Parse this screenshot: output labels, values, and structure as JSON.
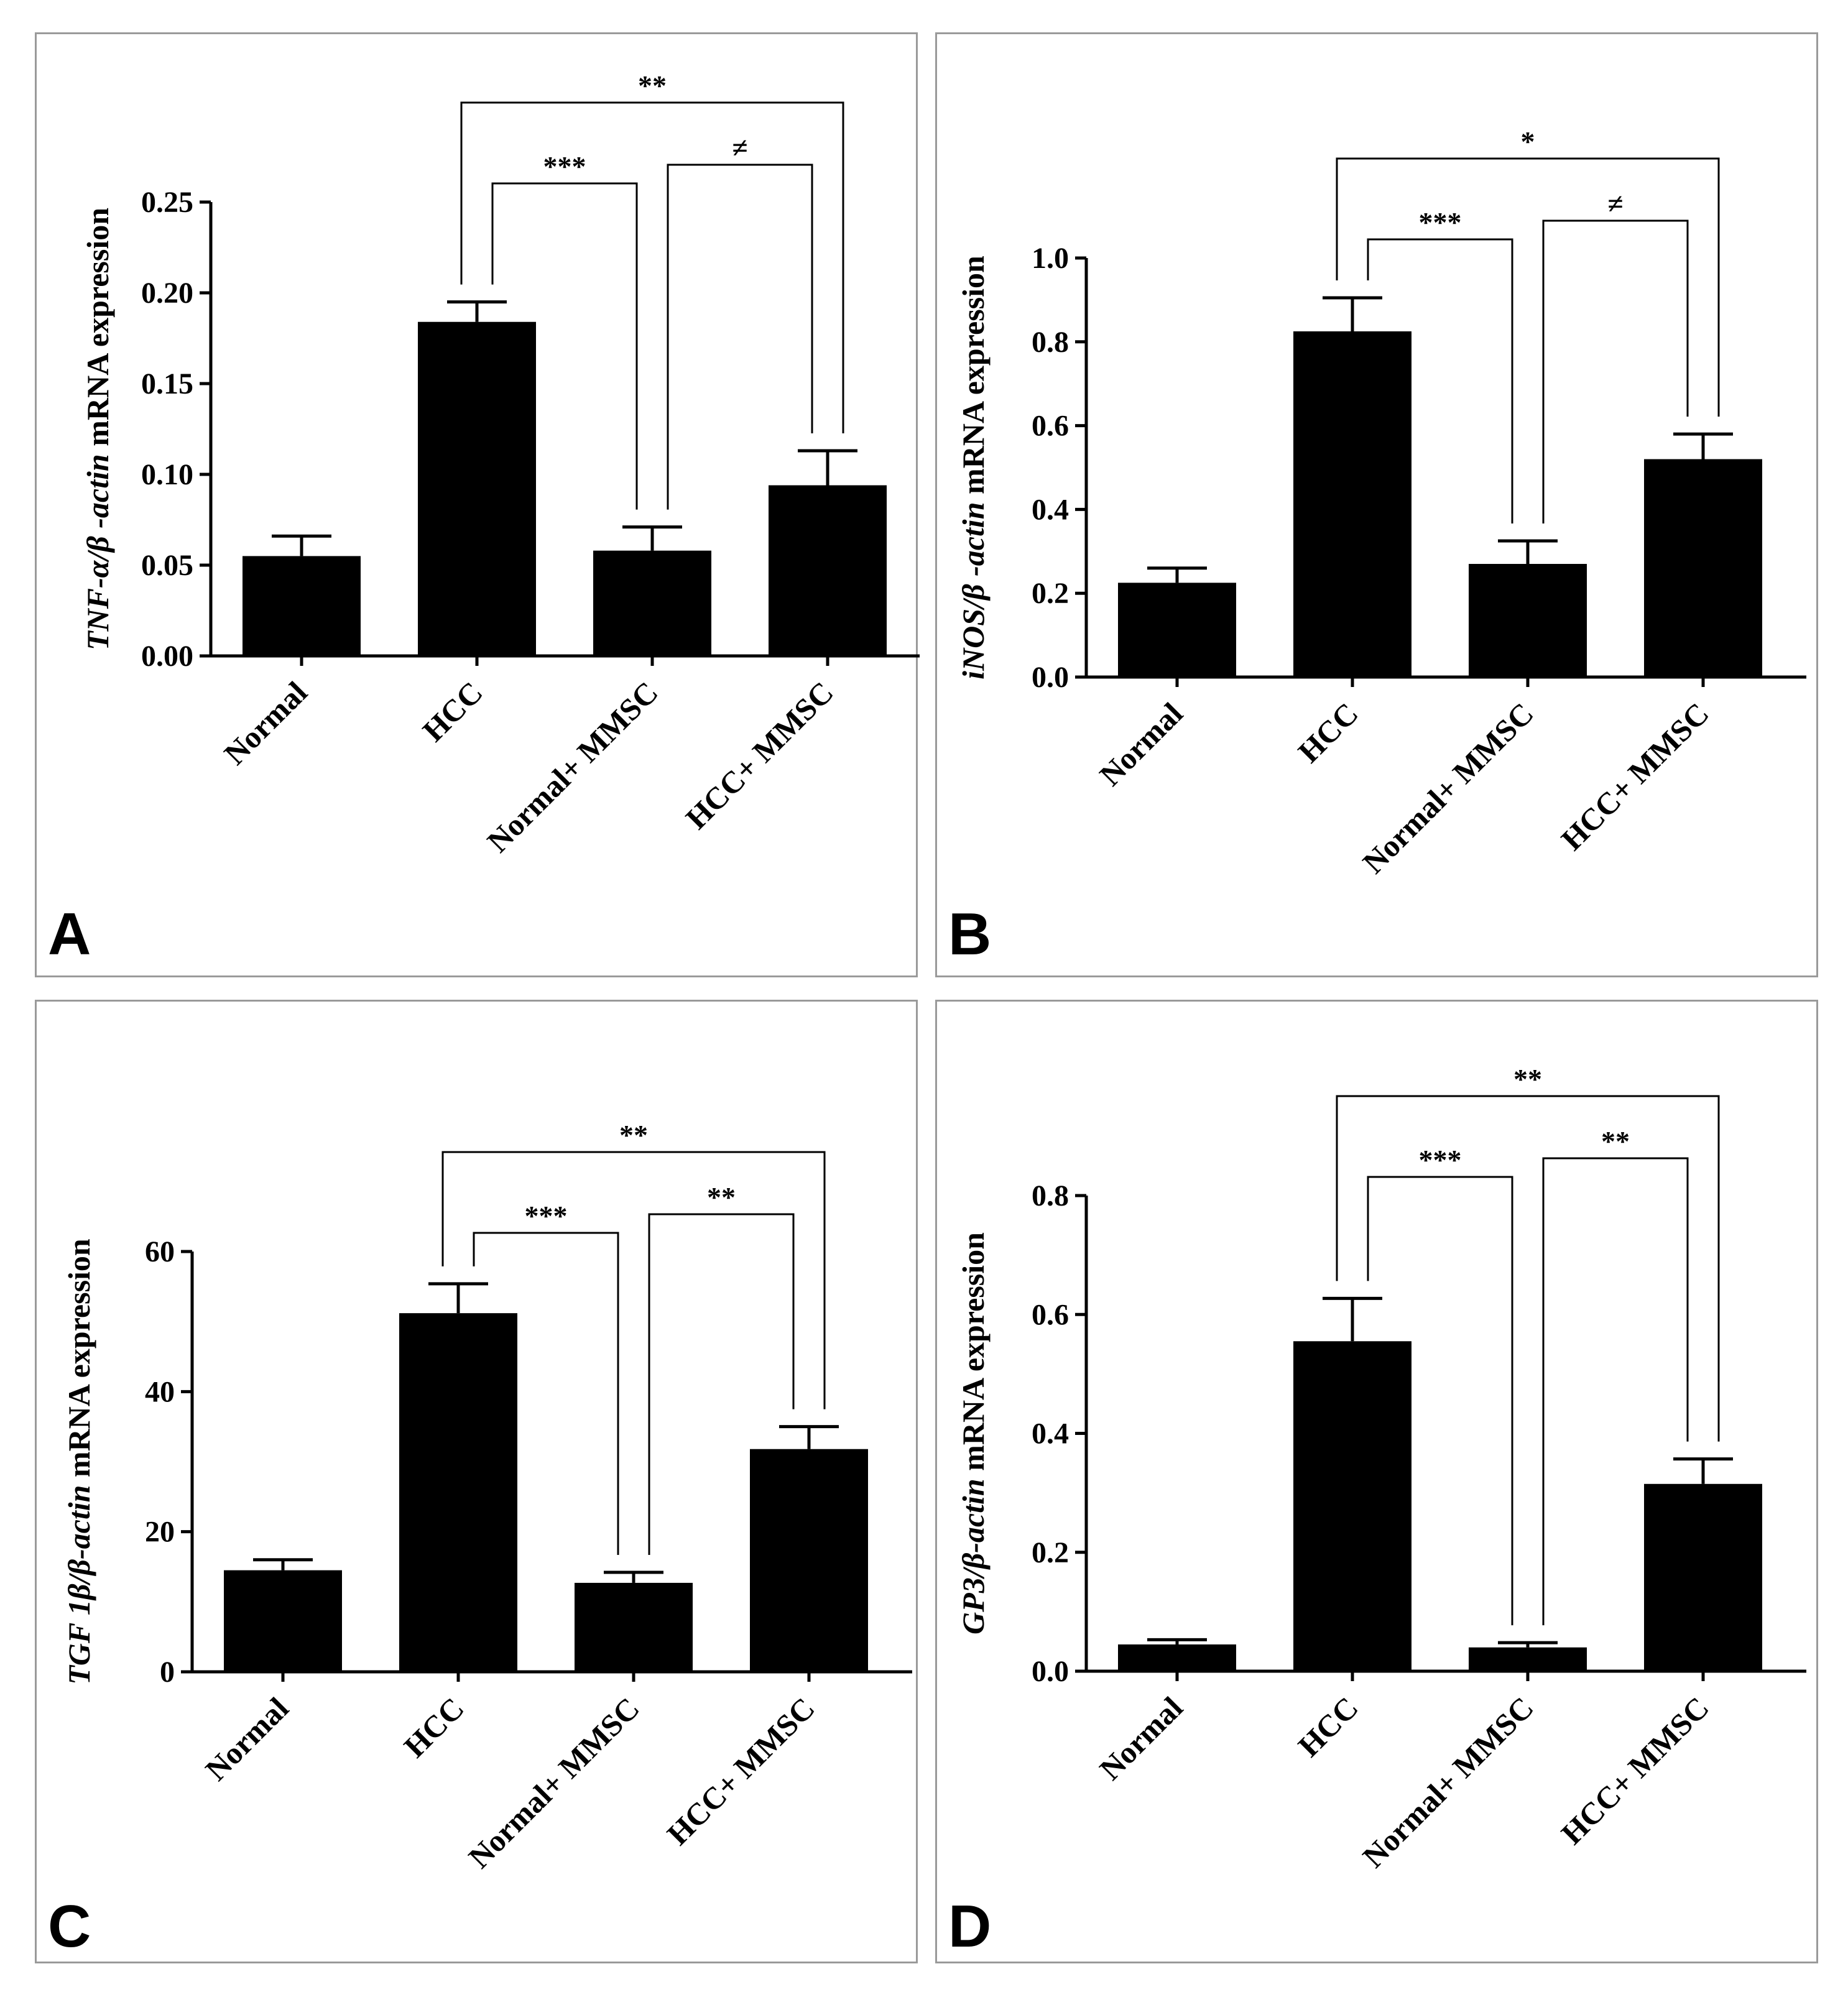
{
  "colors": {
    "bar": "#000000",
    "axis": "#000000",
    "border": "#9a9a9a"
  },
  "chart_data": [
    {
      "id": "A",
      "panel_label": "A",
      "type": "bar",
      "categories": [
        "Normal",
        "HCC",
        "Normal+ MMSC",
        "HCC+ MMSC"
      ],
      "values": [
        0.055,
        0.184,
        0.058,
        0.094
      ],
      "errors": [
        0.011,
        0.011,
        0.013,
        0.019
      ],
      "ylabel_italic": "TNF-α/β -actin",
      "ylabel_rest": " mRNA expression",
      "ylim": [
        0,
        0.25
      ],
      "yticks": [
        0,
        0.05,
        0.1,
        0.15,
        0.2,
        0.25
      ],
      "ytick_labels": [
        "0.00",
        "0.05",
        "0.10",
        "0.15",
        "0.20",
        "0.25"
      ],
      "brackets": [
        {
          "from": 1,
          "to": 3,
          "label": "**"
        },
        {
          "from": 2,
          "to": 3,
          "label": "≠"
        },
        {
          "from": 1,
          "to": 2,
          "label": "***"
        }
      ]
    },
    {
      "id": "B",
      "panel_label": "B",
      "type": "bar",
      "categories": [
        "Normal",
        "HCC",
        "Normal+ MMSC",
        "HCC+ MMSC"
      ],
      "values": [
        0.225,
        0.825,
        0.27,
        0.52
      ],
      "errors": [
        0.035,
        0.08,
        0.055,
        0.06
      ],
      "ylabel_italic": "iNOS/β -actin",
      "ylabel_rest": " mRNA expression",
      "ylim": [
        0,
        1.0
      ],
      "yticks": [
        0,
        0.2,
        0.4,
        0.6,
        0.8,
        1.0
      ],
      "ytick_labels": [
        "0.0",
        "0.2",
        "0.4",
        "0.6",
        "0.8",
        "1.0"
      ],
      "brackets": [
        {
          "from": 1,
          "to": 3,
          "label": "*"
        },
        {
          "from": 2,
          "to": 3,
          "label": "≠"
        },
        {
          "from": 1,
          "to": 2,
          "label": "***"
        }
      ]
    },
    {
      "id": "C",
      "panel_label": "C",
      "type": "bar",
      "categories": [
        "Normal",
        "HCC",
        "Normal+ MMSC",
        "HCC+ MMSC"
      ],
      "values": [
        14.5,
        51.2,
        12.7,
        31.8
      ],
      "errors": [
        1.5,
        4.2,
        1.5,
        3.2
      ],
      "ylabel_italic": "TGF 1β/β-actin",
      "ylabel_rest": " mRNA expression",
      "ylim": [
        0,
        60
      ],
      "yticks": [
        0,
        20,
        40,
        60
      ],
      "ytick_labels": [
        "0",
        "20",
        "40",
        "60"
      ],
      "brackets": [
        {
          "from": 1,
          "to": 3,
          "label": "**"
        },
        {
          "from": 2,
          "to": 3,
          "label": "**"
        },
        {
          "from": 1,
          "to": 2,
          "label": "***"
        }
      ]
    },
    {
      "id": "D",
      "panel_label": "D",
      "type": "bar",
      "categories": [
        "Normal",
        "HCC",
        "Normal+ MMSC",
        "HCC+ MMSC"
      ],
      "values": [
        0.045,
        0.555,
        0.04,
        0.315
      ],
      "errors": [
        0.008,
        0.072,
        0.008,
        0.042
      ],
      "ylabel_italic": "GP3/β-actin",
      "ylabel_rest": " mRNA expression",
      "ylim": [
        0,
        0.8
      ],
      "yticks": [
        0,
        0.2,
        0.4,
        0.6,
        0.8
      ],
      "ytick_labels": [
        "0.0",
        "0.2",
        "0.4",
        "0.6",
        "0.8"
      ],
      "brackets": [
        {
          "from": 1,
          "to": 3,
          "label": "**"
        },
        {
          "from": 2,
          "to": 3,
          "label": "**"
        },
        {
          "from": 1,
          "to": 2,
          "label": "***"
        }
      ]
    }
  ]
}
